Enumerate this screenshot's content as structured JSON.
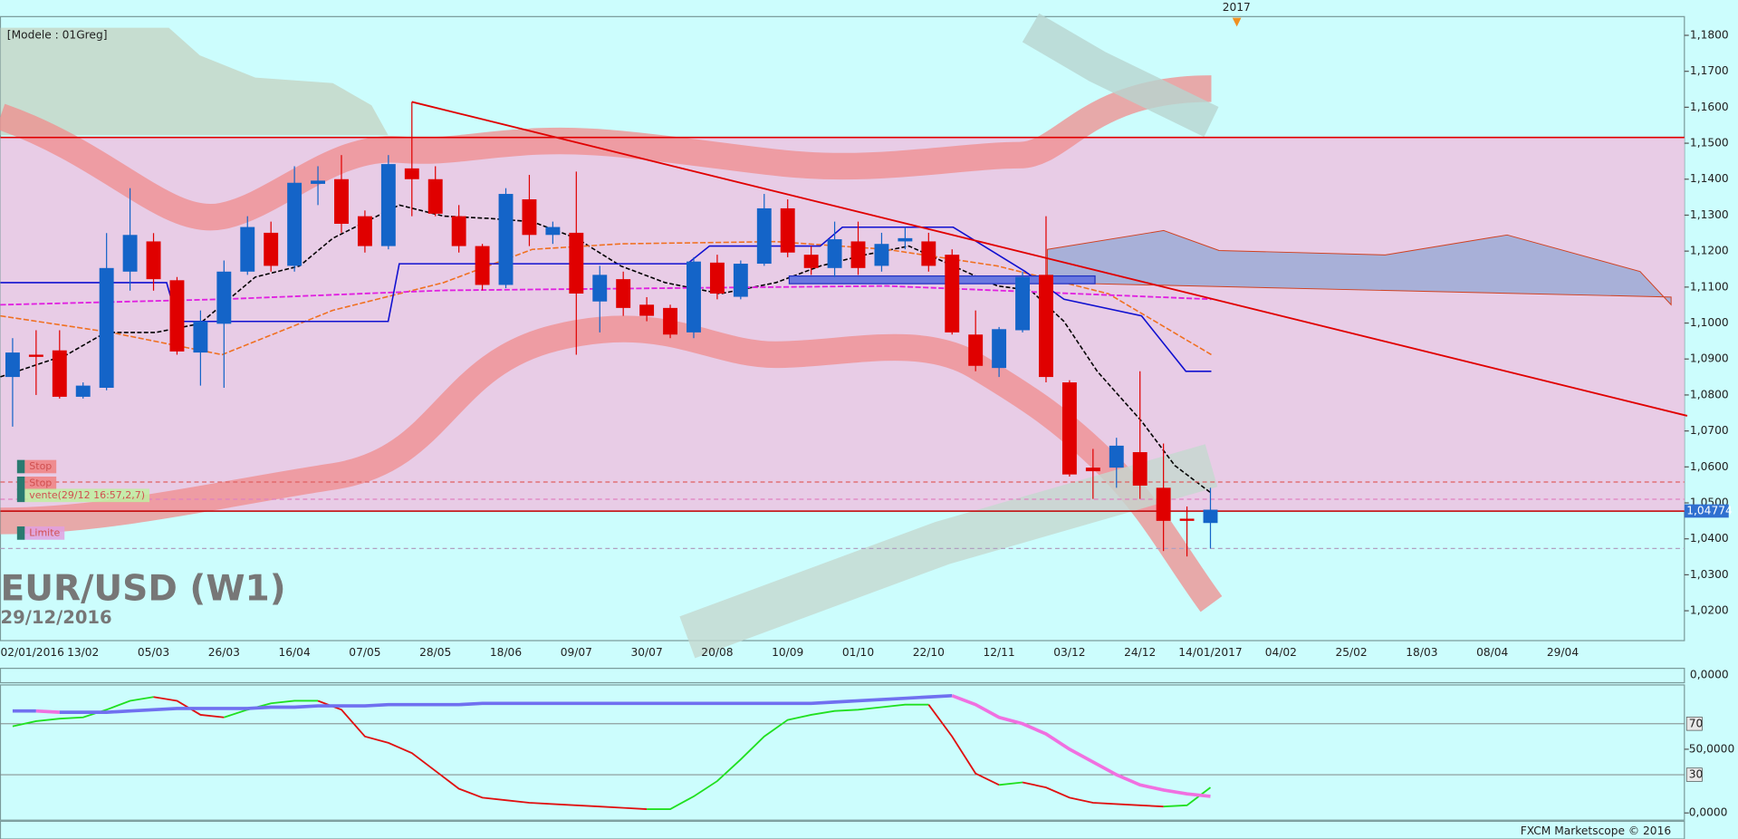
{
  "chart_data": {
    "type": "candlestick",
    "title": "EUR/USD (W1)",
    "subtitle": "29/12/2016",
    "model_label": "[Modele : 01Greg]",
    "year_marker": "2017",
    "footer": "FXCM Marketscope © 2016",
    "up_color": "#1464c8",
    "down_color": "#e00000",
    "x_tick_labels": [
      "02/01/2016",
      "13/02",
      "05/03",
      "26/03",
      "16/04",
      "07/05",
      "28/05",
      "18/06",
      "09/07",
      "30/07",
      "20/08",
      "10/09",
      "01/10",
      "22/10",
      "12/11",
      "03/12",
      "24/12",
      "14/01/2017",
      "04/02",
      "25/02",
      "18/03",
      "08/04",
      "29/04"
    ],
    "open": [
      1.085,
      1.0912,
      1.0924,
      1.0795,
      1.082,
      1.1143,
      1.1227,
      1.1119,
      1.0918,
      1.0998,
      1.1143,
      1.1251,
      1.1159,
      1.1387,
      1.14,
      1.1297,
      1.1214,
      1.143,
      1.14,
      1.1297,
      1.1214,
      1.1106,
      1.1344,
      1.1245,
      1.1251,
      1.106,
      1.1122,
      1.1051,
      1.1042,
      1.0974,
      1.1168,
      1.1073,
      1.1165,
      1.1319,
      1.119,
      1.1153,
      1.1227,
      1.1159,
      1.1227,
      1.1227,
      1.119,
      1.0968,
      1.0875,
      1.098,
      1.1134,
      1.0835,
      1.0598,
      1.0598,
      1.0641,
      1.0542,
      1.0456,
      1.0444
    ],
    "high": [
      1.0958,
      1.098,
      1.098,
      1.0835,
      1.125,
      1.1375,
      1.125,
      1.1128,
      1.1035,
      1.1174,
      1.1297,
      1.1282,
      1.1436,
      1.1436,
      1.1467,
      1.1313,
      1.1467,
      1.1615,
      1.1436,
      1.1328,
      1.122,
      1.1375,
      1.1412,
      1.1282,
      1.1421,
      1.1159,
      1.1143,
      1.1072,
      1.1051,
      1.1183,
      1.119,
      1.1174,
      1.1359,
      1.1344,
      1.1214,
      1.1282,
      1.1282,
      1.1251,
      1.1267,
      1.1251,
      1.1205,
      1.1035,
      1.0989,
      1.1143,
      1.1297,
      1.0841,
      1.065,
      1.0681,
      1.0866,
      1.0665,
      1.049,
      1.0542
    ],
    "low": [
      1.0712,
      1.08,
      1.079,
      1.079,
      1.0813,
      1.109,
      1.109,
      1.0912,
      1.0826,
      1.082,
      1.1134,
      1.1143,
      1.1143,
      1.1328,
      1.1251,
      1.1196,
      1.1205,
      1.1297,
      1.1297,
      1.1196,
      1.1091,
      1.1097,
      1.1214,
      1.122,
      1.0912,
      1.0974,
      1.102,
      1.1005,
      1.0958,
      1.0958,
      1.1066,
      1.1066,
      1.1159,
      1.1183,
      1.1134,
      1.1128,
      1.1134,
      1.1143,
      1.1205,
      1.1143,
      1.0968,
      1.0866,
      1.085,
      1.0974,
      1.0835,
      1.0573,
      1.0511,
      1.0542,
      1.0511,
      1.0366,
      1.0351,
      1.0373
    ],
    "close": [
      1.0918,
      1.0906,
      1.0795,
      1.0826,
      1.1153,
      1.1245,
      1.1122,
      1.0921,
      1.1005,
      1.1143,
      1.1267,
      1.1159,
      1.139,
      1.1396,
      1.1276,
      1.1214,
      1.1442,
      1.14,
      1.1304,
      1.1214,
      1.1106,
      1.1359,
      1.1245,
      1.1267,
      1.1082,
      1.1134,
      1.1042,
      1.102,
      1.0968,
      1.1171,
      1.1082,
      1.1165,
      1.1319,
      1.1196,
      1.1153,
      1.1233,
      1.1153,
      1.122,
      1.1236,
      1.1159,
      1.0974,
      1.0881,
      1.0983,
      1.1128,
      1.085,
      1.0579,
      1.0588,
      1.0659,
      1.0548,
      1.045,
      1.045,
      1.0481
    ],
    "ylim": [
      1.0117,
      1.1852
    ],
    "yticks": [
      {
        "value": 1.18,
        "label": "1,1800"
      },
      {
        "value": 1.17,
        "label": "1,1700"
      },
      {
        "value": 1.16,
        "label": "1,1600"
      },
      {
        "value": 1.15,
        "label": "1,1500"
      },
      {
        "value": 1.14,
        "label": "1,1400"
      },
      {
        "value": 1.13,
        "label": "1,1300"
      },
      {
        "value": 1.12,
        "label": "1,1200"
      },
      {
        "value": 1.11,
        "label": "1,1100"
      },
      {
        "value": 1.1,
        "label": "1,1000"
      },
      {
        "value": 1.09,
        "label": "1,0900"
      },
      {
        "value": 1.08,
        "label": "1,0800"
      },
      {
        "value": 1.07,
        "label": "1,0700"
      },
      {
        "value": 1.06,
        "label": "1,0600"
      },
      {
        "value": 1.05,
        "label": "1,0500"
      },
      {
        "value": 1.04,
        "label": "1,0400"
      },
      {
        "value": 1.03,
        "label": "1,0300"
      },
      {
        "value": 1.02,
        "label": "1,0200"
      }
    ],
    "current_price": {
      "value": 1.04774,
      "label": "1,04774"
    },
    "levels": [
      {
        "value": 1.1516,
        "color": "#e00000"
      },
      {
        "value": 1.0477,
        "color": "#c00000"
      }
    ],
    "dashed_levels": [
      {
        "value": 1.0558,
        "color": "#e06060"
      },
      {
        "value": 1.051,
        "color": "#e080c0"
      },
      {
        "value": 1.0373,
        "color": "#b0a0c0"
      }
    ],
    "trendline": {
      "x": [
        17,
        71.3
      ],
      "y": [
        1.1615,
        1.0742
      ],
      "color": "#e00000"
    },
    "orders": [
      {
        "label": "Stop",
        "color": "#f08080"
      },
      {
        "label": "Stop",
        "color": "#f08080"
      },
      {
        "label": "vente(29/12 16:57,2,7)",
        "color": "#c0f0a0"
      },
      {
        "label": "Limite",
        "color": "#e0a0e0"
      }
    ],
    "oscillator": {
      "ylim": [
        0,
        100
      ],
      "yticks": [
        70,
        30,
        {
          "value": 50,
          "label": "50,0000"
        },
        {
          "value": 0,
          "label": "0,0000"
        }
      ],
      "series": [
        {
          "rise_color": "#20e020",
          "fall_color": "#e01010",
          "values": [
            68,
            72,
            74,
            75,
            81,
            88,
            91,
            88,
            77,
            75,
            81,
            86,
            88,
            88,
            81,
            60,
            55,
            47,
            33,
            19,
            12,
            10,
            8,
            7,
            6,
            5,
            4,
            3,
            3,
            13,
            25,
            42,
            60,
            73,
            77,
            80,
            81,
            83,
            85,
            85,
            60,
            31,
            22,
            24,
            20,
            12,
            8,
            7,
            6,
            5,
            6,
            20
          ]
        },
        {
          "rise_color": "#7070f0",
          "fall_color": "#f070e0",
          "values": [
            80,
            80,
            79,
            79,
            79,
            80,
            81,
            82,
            82,
            82,
            82,
            83,
            83,
            84,
            84,
            84,
            85,
            85,
            85,
            85,
            86,
            86,
            86,
            86,
            86,
            86,
            86,
            86,
            86,
            86,
            86,
            86,
            86,
            86,
            86,
            87,
            88,
            89,
            90,
            91,
            92,
            85,
            75,
            70,
            62,
            50,
            40,
            30,
            22,
            18,
            15,
            13
          ]
        }
      ]
    },
    "middle_panel": {
      "yticks": [
        {
          "value": 0,
          "label": "0,0000"
        }
      ]
    }
  }
}
